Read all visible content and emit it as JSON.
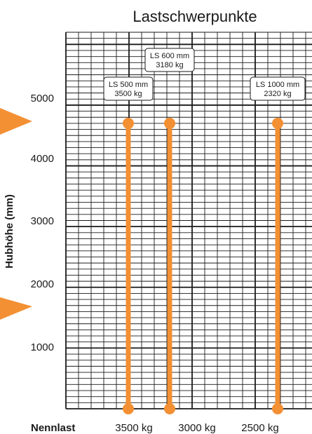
{
  "chart_data": {
    "type": "line",
    "title": "Lastschwerpunkte",
    "ylabel": "Hubhöhe (mm)",
    "xlabel": "Nennlast",
    "ylim": [
      0,
      6200
    ],
    "y_ticks": [
      "1000",
      "2000",
      "3000",
      "4000",
      "5000"
    ],
    "x_tick_labels": [
      "3500 kg",
      "3000 kg",
      "2500 kg"
    ],
    "series": [
      {
        "annotation": [
          "LS 500 mm",
          "3500 kg"
        ],
        "y_start": 0,
        "y_end": 4700
      },
      {
        "annotation": [
          "LS 600 mm",
          "3180 kg"
        ],
        "y_start": 0,
        "y_end": 4700
      },
      {
        "annotation": [
          "LS 1000 mm",
          "2320 kg"
        ],
        "y_start": 0,
        "y_end": 4700
      }
    ],
    "colors": {
      "series": "#f39033",
      "grid": "#1a1a1a",
      "marker": "#f39033"
    },
    "grid": true
  }
}
